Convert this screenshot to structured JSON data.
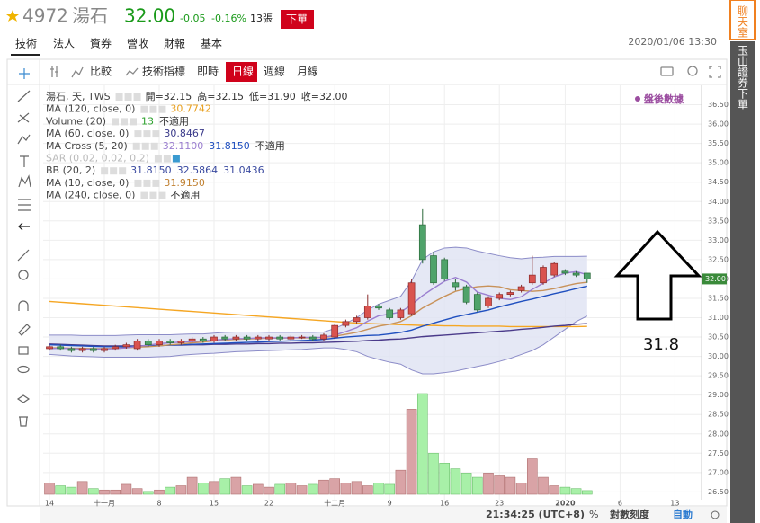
{
  "header": {
    "code": "4972",
    "name": "湯石",
    "price": "32.00",
    "change": "-0.05",
    "change_pct": "-0.16%",
    "volume": "13張",
    "order_button": "下單",
    "tabs": [
      "技術",
      "法人",
      "資券",
      "營收",
      "財報",
      "基本"
    ],
    "datetime": "2020/01/06 13:30"
  },
  "toolbar": {
    "items": [
      "比較",
      "技術指標",
      "即時",
      "日線",
      "週線",
      "月線"
    ],
    "active": 3
  },
  "sidebar": {
    "chat": "聊天室",
    "broker": "玉山證券下單"
  },
  "legend_rows": [
    {
      "label": "湯石, 天, TWS",
      "values": [
        {
          "text": "開=32.15",
          "color": "#333333"
        },
        {
          "text": "高=32.15",
          "color": "#333333"
        },
        {
          "text": "低=31.90",
          "color": "#333333"
        },
        {
          "text": "收=32.00",
          "color": "#333333"
        }
      ]
    },
    {
      "label": "MA (120, close, 0)",
      "values": [
        {
          "text": "30.7742",
          "color": "#e8a020"
        }
      ]
    },
    {
      "label": "Volume (20)",
      "values": [
        {
          "text": "13",
          "color": "#2aa02a"
        },
        {
          "text": "不適用",
          "color": "#333333"
        }
      ]
    },
    {
      "label": "MA (60, close, 0)",
      "values": [
        {
          "text": "30.8467",
          "color": "#3a3a8a"
        }
      ]
    },
    {
      "label": "MA Cross (5, 20)",
      "values": [
        {
          "text": "32.1100",
          "color": "#9b7fd0"
        },
        {
          "text": "31.8150",
          "color": "#1f4fbf"
        },
        {
          "text": "不適用",
          "color": "#333333"
        }
      ]
    },
    {
      "label": "SAR (0.02, 0.02, 0.2)",
      "values": []
    },
    {
      "label": "BB (20, 2)",
      "values": [
        {
          "text": "31.8150",
          "color": "#3a4aa0"
        },
        {
          "text": "32.5864",
          "color": "#3a4aa0"
        },
        {
          "text": "31.0436",
          "color": "#3a4aa0"
        }
      ]
    },
    {
      "label": "MA (10, close, 0)",
      "values": [
        {
          "text": "31.9150",
          "color": "#c08030"
        }
      ]
    },
    {
      "label": "MA (240, close, 0)",
      "values": [
        {
          "text": "不適用",
          "color": "#333333"
        }
      ]
    }
  ],
  "after_hours": "盤後數據",
  "status": {
    "time": "21:34:25 (UTC+8)",
    "percent": "%",
    "log_scale": "對數刻度",
    "auto": "自動"
  },
  "chart_data": {
    "type": "candlestick",
    "categories": [
      "14",
      null,
      null,
      null,
      null,
      "十一月",
      null,
      null,
      null,
      null,
      "8",
      null,
      null,
      null,
      null,
      "15",
      null,
      null,
      null,
      null,
      "22",
      null,
      null,
      null,
      null,
      null,
      "十二月",
      null,
      null,
      null,
      null,
      "9",
      null,
      null,
      null,
      null,
      "16",
      null,
      null,
      null,
      null,
      "23",
      null,
      null,
      null,
      null,
      null,
      "2020",
      null,
      null,
      null,
      null,
      "6",
      null,
      null,
      null,
      null,
      "13"
    ],
    "open": [
      30.2,
      30.25,
      30.2,
      30.15,
      30.2,
      30.15,
      30.2,
      30.25,
      30.2,
      30.4,
      30.3,
      30.4,
      30.35,
      30.4,
      30.45,
      30.4,
      30.5,
      30.45,
      30.5,
      30.45,
      30.45,
      30.5,
      30.45,
      30.5,
      30.5,
      30.45,
      30.5,
      30.8,
      30.9,
      31.0,
      31.3,
      31.2,
      31.0,
      31.1,
      33.4,
      32.6,
      32.5,
      31.9,
      31.8,
      31.6,
      31.3,
      31.5,
      31.6,
      31.7,
      31.9,
      31.9,
      32.1,
      32.2,
      32.15,
      32.15,
      null,
      null,
      null,
      null,
      null,
      null,
      null,
      null
    ],
    "high": [
      30.3,
      30.3,
      30.25,
      30.25,
      30.25,
      30.25,
      30.3,
      30.35,
      30.45,
      30.45,
      30.45,
      30.45,
      30.45,
      30.5,
      30.5,
      30.55,
      30.55,
      30.55,
      30.55,
      30.55,
      30.55,
      30.55,
      30.55,
      30.55,
      30.55,
      30.6,
      30.85,
      30.95,
      31.05,
      31.6,
      31.35,
      31.25,
      31.25,
      32.0,
      33.8,
      32.7,
      32.55,
      32.0,
      31.85,
      31.65,
      31.55,
      31.65,
      31.7,
      31.85,
      32.6,
      32.35,
      32.45,
      32.25,
      32.2,
      32.15,
      null,
      null,
      null,
      null,
      null,
      null,
      null,
      null
    ],
    "low": [
      30.15,
      30.15,
      30.1,
      30.1,
      30.1,
      30.1,
      30.15,
      30.2,
      30.15,
      30.25,
      30.25,
      30.3,
      30.3,
      30.35,
      30.35,
      30.35,
      30.4,
      30.4,
      30.4,
      30.4,
      30.4,
      30.4,
      30.4,
      30.45,
      30.4,
      30.4,
      30.45,
      30.75,
      30.85,
      30.95,
      31.2,
      30.95,
      30.95,
      31.05,
      32.4,
      31.85,
      31.95,
      31.7,
      31.35,
      31.15,
      31.25,
      31.45,
      31.55,
      31.65,
      31.85,
      31.85,
      32.05,
      32.1,
      32.05,
      31.9,
      null,
      null,
      null,
      null,
      null,
      null,
      null,
      null
    ],
    "close": [
      30.25,
      30.2,
      30.15,
      30.2,
      30.15,
      30.2,
      30.25,
      30.3,
      30.4,
      30.3,
      30.4,
      30.35,
      30.4,
      30.45,
      30.4,
      30.5,
      30.45,
      30.5,
      30.45,
      30.5,
      30.5,
      30.45,
      30.5,
      30.5,
      30.45,
      30.55,
      30.8,
      30.9,
      31.0,
      31.3,
      31.25,
      31.0,
      31.2,
      31.9,
      32.5,
      31.9,
      32.0,
      31.8,
      31.4,
      31.2,
      31.5,
      31.6,
      31.65,
      31.8,
      32.1,
      32.3,
      32.4,
      32.15,
      32.1,
      32.0,
      null,
      null,
      null,
      null,
      null,
      null,
      null,
      null
    ],
    "volume": [
      40,
      30,
      25,
      45,
      20,
      15,
      15,
      35,
      20,
      10,
      15,
      25,
      30,
      60,
      40,
      45,
      55,
      60,
      30,
      35,
      25,
      35,
      40,
      30,
      35,
      50,
      55,
      40,
      45,
      30,
      40,
      35,
      85,
      300,
      355,
      145,
      110,
      90,
      75,
      60,
      75,
      65,
      60,
      40,
      125,
      60,
      30,
      25,
      20,
      13,
      null,
      null,
      null,
      null,
      null,
      null,
      null,
      null
    ],
    "up_color": "#d9534f",
    "down_color": "#4fa36a",
    "up_volume_color": "#d9a3a6",
    "down_volume_color": "#a8f0a8",
    "series": [
      {
        "name": "MA (120, close, 0)",
        "color": "#f5a623",
        "values": [
          31.42,
          31.4,
          31.38,
          31.36,
          31.34,
          31.32,
          31.3,
          31.28,
          31.26,
          31.24,
          31.22,
          31.2,
          31.18,
          31.16,
          31.14,
          31.12,
          31.1,
          31.08,
          31.06,
          31.04,
          31.02,
          31.0,
          30.98,
          30.96,
          30.94,
          30.92,
          30.9,
          30.88,
          30.86,
          30.85,
          30.84,
          30.83,
          30.82,
          30.81,
          30.8,
          30.8,
          30.79,
          30.79,
          30.78,
          30.78,
          30.78,
          30.78,
          30.77,
          30.77,
          30.77,
          30.77,
          30.77,
          30.77,
          30.77,
          30.7742,
          null,
          null,
          null,
          null,
          null,
          null,
          null,
          null
        ]
      },
      {
        "name": "MA (60, close, 0)",
        "color": "#4a3a8a",
        "values": [
          30.32,
          30.31,
          30.3,
          30.29,
          30.28,
          30.27,
          30.27,
          30.27,
          30.27,
          30.28,
          30.28,
          30.29,
          30.29,
          30.3,
          30.3,
          30.31,
          30.31,
          30.32,
          30.32,
          30.33,
          30.33,
          30.34,
          30.34,
          30.35,
          30.35,
          30.36,
          30.37,
          30.38,
          30.39,
          30.41,
          30.42,
          30.44,
          30.45,
          30.48,
          30.51,
          30.53,
          30.55,
          30.57,
          30.59,
          30.61,
          30.63,
          30.65,
          30.67,
          30.7,
          30.72,
          30.75,
          30.78,
          30.8,
          30.83,
          30.8467,
          null,
          null,
          null,
          null,
          null,
          null,
          null,
          null
        ]
      },
      {
        "name": "MA (20)",
        "color": "#1f4fbf",
        "values": [
          30.3,
          30.29,
          30.28,
          30.27,
          30.26,
          30.25,
          30.25,
          30.25,
          30.26,
          30.27,
          30.28,
          30.29,
          30.3,
          30.31,
          30.32,
          30.33,
          30.34,
          30.35,
          30.36,
          30.37,
          30.38,
          30.39,
          30.4,
          30.41,
          30.42,
          30.44,
          30.47,
          30.5,
          30.52,
          30.54,
          30.55,
          30.58,
          30.62,
          30.68,
          30.78,
          30.86,
          30.94,
          31.02,
          31.08,
          31.14,
          31.2,
          31.28,
          31.35,
          31.42,
          31.48,
          31.55,
          31.62,
          31.68,
          31.75,
          31.815,
          null,
          null,
          null,
          null,
          null,
          null,
          null,
          null
        ]
      },
      {
        "name": "MA (10, close, 0)",
        "color": "#c8925a",
        "values": [
          30.22,
          30.22,
          30.21,
          30.21,
          30.2,
          30.2,
          30.21,
          30.22,
          30.24,
          30.25,
          30.27,
          30.3,
          30.32,
          30.35,
          30.37,
          30.4,
          30.42,
          30.44,
          30.45,
          30.46,
          30.47,
          30.47,
          30.48,
          30.48,
          30.48,
          30.49,
          30.52,
          30.57,
          30.62,
          30.7,
          30.78,
          30.83,
          30.9,
          31.05,
          31.25,
          31.4,
          31.55,
          31.68,
          31.75,
          31.8,
          31.82,
          31.8,
          31.72,
          31.7,
          31.68,
          31.7,
          31.75,
          31.82,
          31.88,
          31.915,
          null,
          null,
          null,
          null,
          null,
          null,
          null,
          null
        ]
      },
      {
        "name": "MA (5)",
        "color": "#9b7fd0",
        "values": [
          30.2,
          30.21,
          30.2,
          30.19,
          30.19,
          30.19,
          30.2,
          30.22,
          30.26,
          30.29,
          30.33,
          30.35,
          30.37,
          30.38,
          30.4,
          30.42,
          30.44,
          30.46,
          30.46,
          30.48,
          30.48,
          30.48,
          30.48,
          30.49,
          30.49,
          30.49,
          30.55,
          30.64,
          30.74,
          30.91,
          31.05,
          31.09,
          31.15,
          31.33,
          31.57,
          31.76,
          31.94,
          32.04,
          31.92,
          31.66,
          31.58,
          31.5,
          31.47,
          31.54,
          31.73,
          31.89,
          32.05,
          32.15,
          32.19,
          32.11,
          null,
          null,
          null,
          null,
          null,
          null,
          null,
          null
        ]
      }
    ],
    "bands": {
      "name": "BB (20, 2)",
      "color": "#8c8cc8",
      "fill": "#dfe2f2",
      "upper": [
        30.55,
        30.55,
        30.55,
        30.54,
        30.54,
        30.54,
        30.54,
        30.55,
        30.56,
        30.56,
        30.56,
        30.56,
        30.57,
        30.58,
        30.58,
        30.6,
        30.62,
        30.63,
        30.63,
        30.63,
        30.62,
        30.62,
        30.62,
        30.62,
        30.62,
        30.63,
        30.72,
        30.85,
        31.0,
        31.2,
        31.35,
        31.45,
        31.55,
        31.95,
        32.5,
        32.7,
        32.8,
        32.82,
        32.8,
        32.72,
        32.66,
        32.6,
        32.55,
        32.52,
        32.55,
        32.56,
        32.58,
        32.58,
        32.58,
        32.5864,
        null,
        null,
        null,
        null,
        null,
        null,
        null,
        null
      ],
      "lower": [
        30.05,
        30.03,
        30.01,
        30.0,
        29.99,
        29.98,
        29.98,
        29.98,
        29.98,
        29.98,
        29.99,
        30.0,
        30.03,
        30.05,
        30.07,
        30.08,
        30.1,
        30.12,
        30.13,
        30.14,
        30.15,
        30.16,
        30.17,
        30.18,
        30.2,
        30.22,
        30.22,
        30.18,
        30.12,
        30.0,
        29.92,
        29.85,
        29.8,
        29.65,
        29.55,
        29.55,
        29.58,
        29.62,
        29.68,
        29.74,
        29.8,
        29.87,
        29.95,
        30.05,
        30.15,
        30.3,
        30.5,
        30.7,
        30.9,
        31.0436,
        null,
        null,
        null,
        null,
        null,
        null,
        null,
        null
      ]
    },
    "ylim": [
      26.3,
      37.0
    ],
    "yticks": [
      {
        "value": 26.5,
        "label": "26.50"
      },
      {
        "value": 27,
        "label": "27.00"
      },
      {
        "value": 27.5,
        "label": "27.50"
      },
      {
        "value": 28,
        "label": "28.00"
      },
      {
        "value": 28.5,
        "label": "28.50"
      },
      {
        "value": 29,
        "label": "29.00"
      },
      {
        "value": 29.5,
        "label": "29.50"
      },
      {
        "value": 30,
        "label": "30.00"
      },
      {
        "value": 30.5,
        "label": "30.50"
      },
      {
        "value": 31,
        "label": "31.00"
      },
      {
        "value": 31.5,
        "label": "31.50"
      },
      {
        "value": 32,
        "label": "32.00"
      },
      {
        "value": 32.5,
        "label": "32.50"
      },
      {
        "value": 33,
        "label": "33.00"
      },
      {
        "value": 33.5,
        "label": "33.50"
      },
      {
        "value": 34,
        "label": "34.00"
      },
      {
        "value": 34.5,
        "label": "34.50"
      },
      {
        "value": 35,
        "label": "35.00"
      },
      {
        "value": 35.5,
        "label": "35.50"
      },
      {
        "value": 36,
        "label": "36.00"
      },
      {
        "value": 36.5,
        "label": "36.50"
      }
    ],
    "grid": true,
    "annotation": "31.8"
  }
}
